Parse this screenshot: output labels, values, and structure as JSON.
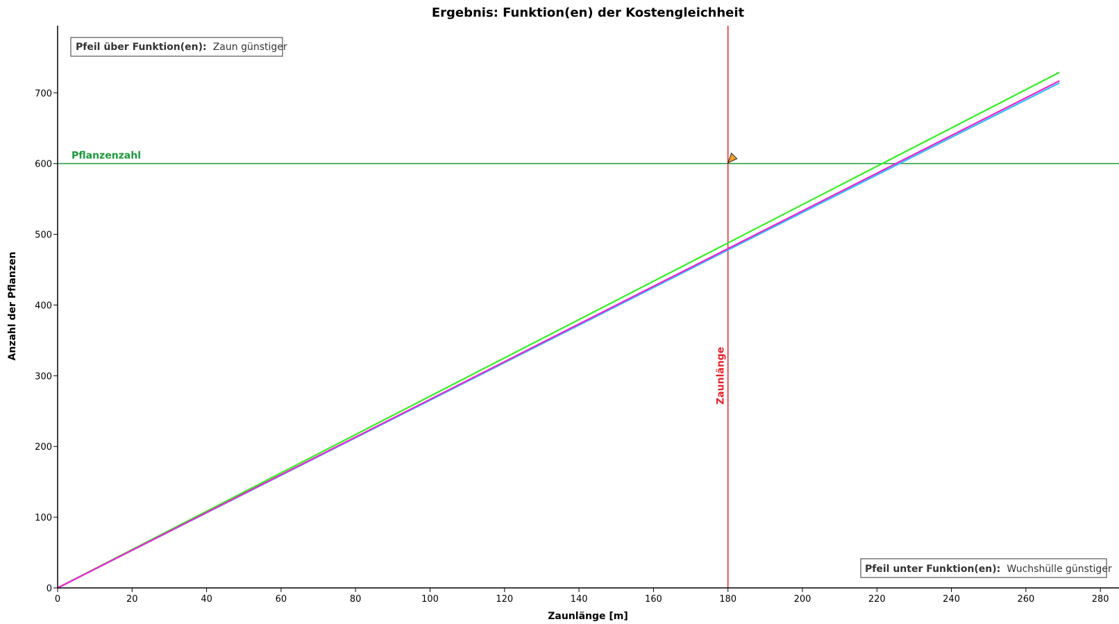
{
  "chart_data": {
    "type": "line",
    "title": "Ergebnis: Funktion(en) der Kostengleichheit",
    "xlabel": "Zaunlänge [m]",
    "ylabel": "Anzahl der Pflanzen",
    "xlim": [
      0,
      285
    ],
    "ylim": [
      0,
      795
    ],
    "x_ticks": [
      0,
      20,
      40,
      60,
      80,
      100,
      120,
      140,
      160,
      180,
      200,
      220,
      240,
      260,
      280
    ],
    "y_ticks": [
      0,
      100,
      200,
      300,
      400,
      500,
      600,
      700
    ],
    "grid": false,
    "series": [
      {
        "color": "#33ee22",
        "x": [
          0,
          269
        ],
        "y": [
          0,
          729
        ]
      },
      {
        "color": "#33bbff",
        "x": [
          0,
          269
        ],
        "y": [
          0,
          714
        ]
      },
      {
        "color": "#ee22cc",
        "x": [
          0,
          269
        ],
        "y": [
          0,
          717
        ]
      }
    ],
    "reference_lines": [
      {
        "orientation": "horizontal",
        "value": 600,
        "label": "Pflanzenzahl",
        "color": "#1a9a3a"
      },
      {
        "orientation": "vertical",
        "value": 180,
        "label": "Zaunlänge",
        "color": "#e8232a"
      }
    ],
    "arrow_marker": {
      "x": 180,
      "y": 600,
      "color": "#f0a030"
    },
    "annotations": {
      "top_left": {
        "bold": "Pfeil über Funktion(en):",
        "text": "Zaun günstiger"
      },
      "bottom_right": {
        "bold": "Pfeil unter Funktion(en):",
        "text": "Wuchshülle günstiger"
      }
    }
  }
}
